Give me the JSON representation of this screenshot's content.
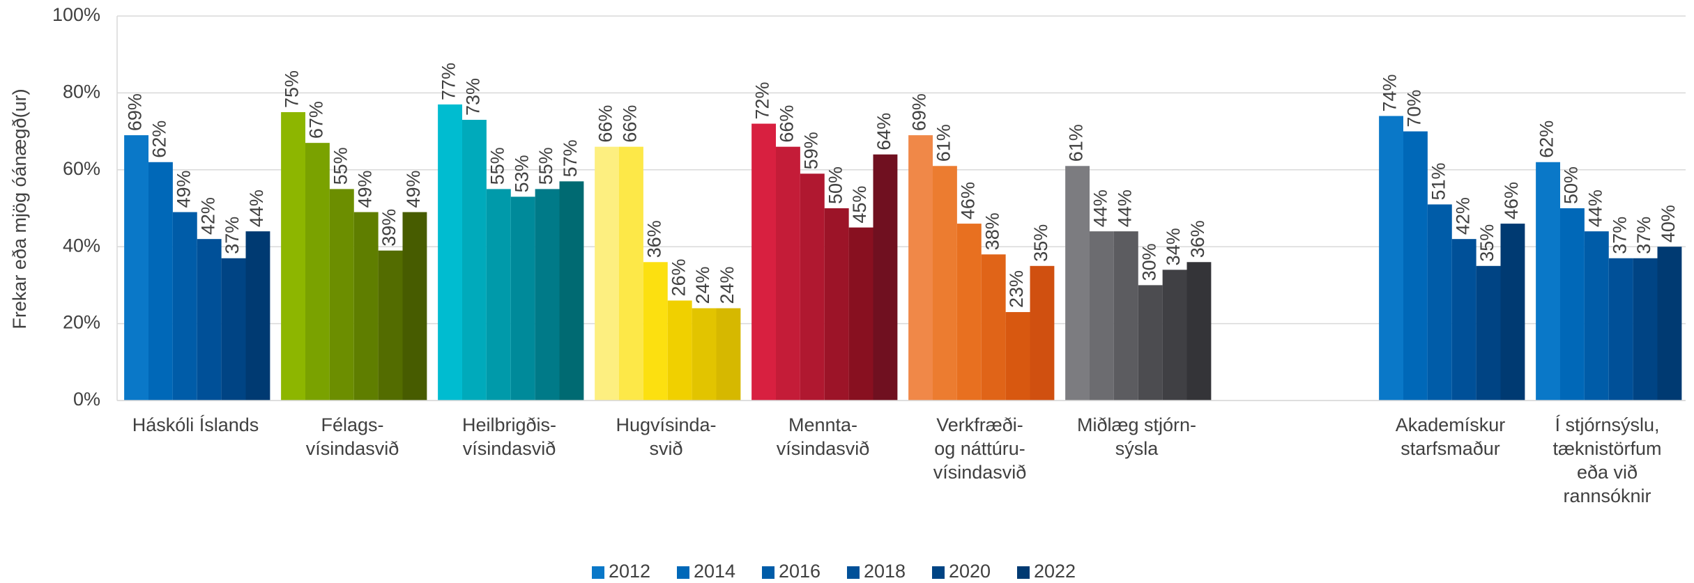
{
  "chart_data": {
    "type": "bar",
    "y_label": "Frekar eða mjög óánægð(ur)",
    "categories": [
      "Háskóli Íslands",
      "Félags-\nvísindasvið",
      "Heilbrigðis-\nvísindasvið",
      "Hugvísinda-\nsvið",
      "Mennta-\nvísindasvið",
      "Verkfræði-\nog náttúru-\nvísindasvið",
      "Miðlæg stjórn-\nsýsla",
      null,
      "Akademískur\nstarfsmaður",
      "Í stjórnsýslu,\ntæknistörfum\neða við\nrannsóknir"
    ],
    "series": [
      {
        "name": "2012",
        "color": "#0a78c8",
        "values": [
          69,
          75,
          77,
          66,
          72,
          69,
          61,
          null,
          74,
          62
        ],
        "value_labels": [
          "69%",
          "75%",
          "77%",
          "66%",
          "72%",
          "69%",
          "61%",
          null,
          "74%",
          "62%"
        ]
      },
      {
        "name": "2014",
        "color": "#0068b8",
        "values": [
          62,
          67,
          73,
          66,
          66,
          61,
          44,
          null,
          70,
          50
        ],
        "value_labels": [
          "62%",
          "67%",
          "73%",
          "66%",
          "66%",
          "61%",
          "44%",
          null,
          "70%",
          "50%"
        ]
      },
      {
        "name": "2016",
        "color": "#005ca8",
        "values": [
          49,
          55,
          55,
          36,
          59,
          46,
          44,
          null,
          51,
          44
        ],
        "value_labels": [
          "49%",
          "55%",
          "55%",
          "36%",
          "59%",
          "46%",
          "44%",
          null,
          "51%",
          "44%"
        ]
      },
      {
        "name": "2018",
        "color": "#005098",
        "values": [
          42,
          49,
          53,
          26,
          50,
          38,
          30,
          null,
          42,
          37
        ],
        "value_labels": [
          "42%",
          "49%",
          "53%",
          "26%",
          "50%",
          "38%",
          "30%",
          null,
          "42%",
          "37%"
        ]
      },
      {
        "name": "2020",
        "color": "#004484",
        "values": [
          37,
          39,
          55,
          24,
          45,
          23,
          34,
          null,
          35,
          37
        ],
        "value_labels": [
          "37%",
          "39%",
          "55%",
          "24%",
          "45%",
          "23%",
          "34%",
          null,
          "35%",
          "37%"
        ]
      },
      {
        "name": "2022",
        "color": "#003a72",
        "values": [
          44,
          49,
          57,
          24,
          64,
          35,
          36,
          null,
          46,
          40
        ],
        "value_labels": [
          "44%",
          "49%",
          "57%",
          "24%",
          "64%",
          "35%",
          "36%",
          null,
          "46%",
          "40%"
        ]
      }
    ],
    "group_colors": [
      [
        "#0a78c8",
        "#0068b8",
        "#005ca8",
        "#005098",
        "#004484",
        "#003a72"
      ],
      [
        "#8db600",
        "#7aa200",
        "#6c8e00",
        "#5f7e00",
        "#536c00",
        "#475c00"
      ],
      [
        "#00bcd0",
        "#00aabb",
        "#009aaa",
        "#008a9a",
        "#007a88",
        "#006a72"
      ],
      [
        "#fdef80",
        "#fde848",
        "#fce010",
        "#f0d000",
        "#e2c400",
        "#d6b800"
      ],
      [
        "#d82040",
        "#c41c38",
        "#b01830",
        "#9c1428",
        "#881020",
        "#701020"
      ],
      [
        "#f08848",
        "#ec7c30",
        "#e87020",
        "#e06418",
        "#d85810",
        "#d05010"
      ],
      [
        "#7c7c80",
        "#6c6c70",
        "#5c5c60",
        "#4c4c50",
        "#404044",
        "#343438"
      ],
      null,
      [
        "#0a78c8",
        "#0068b8",
        "#005ca8",
        "#005098",
        "#004484",
        "#003a72"
      ],
      [
        "#0a78c8",
        "#0068b8",
        "#005ca8",
        "#005098",
        "#004484",
        "#003a72"
      ]
    ],
    "ylim": [
      0,
      100
    ],
    "yticks": [
      {
        "value": 0,
        "label": "0%"
      },
      {
        "value": 20,
        "label": "20%"
      },
      {
        "value": 40,
        "label": "40%"
      },
      {
        "value": 60,
        "label": "60%"
      },
      {
        "value": 80,
        "label": "80%"
      },
      {
        "value": 100,
        "label": "100%"
      }
    ],
    "grid": true,
    "legend": "bottom"
  }
}
